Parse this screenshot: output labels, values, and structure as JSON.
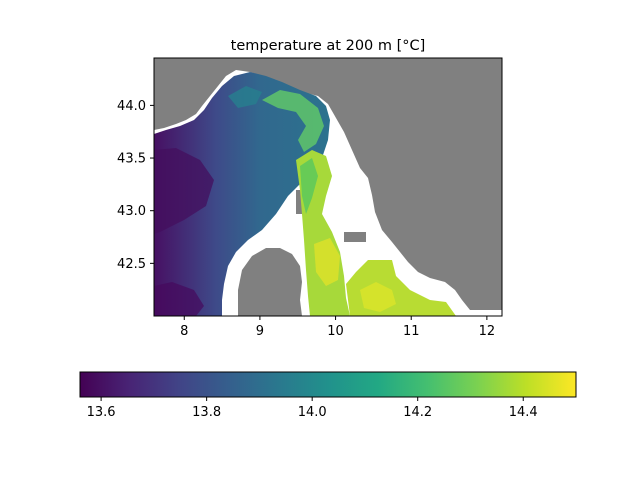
{
  "chart_data": {
    "type": "heatmap",
    "title": "temperature at 200 m [°C]",
    "xlabel": "",
    "ylabel": "",
    "xlim": [
      7.6,
      12.2
    ],
    "ylim": [
      42.0,
      44.45
    ],
    "x_ticks": [
      "8",
      "9",
      "10",
      "11",
      "12"
    ],
    "y_ticks": [
      "42.5",
      "43.0",
      "43.5",
      "44.0"
    ],
    "colorbar": {
      "orientation": "horizontal",
      "colormap": "viridis",
      "range": [
        13.56,
        14.5
      ],
      "ticks": [
        "13.6",
        "13.8",
        "14.0",
        "14.2",
        "14.4"
      ]
    },
    "colors": {
      "land": "#808080",
      "nodata": "#ffffff"
    }
  }
}
